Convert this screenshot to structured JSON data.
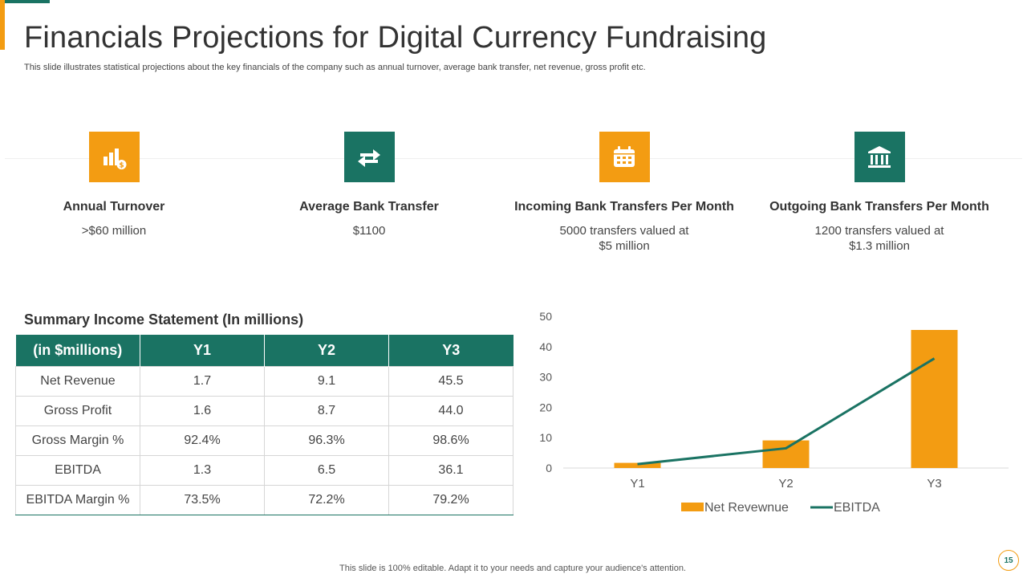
{
  "header": {
    "title": "Financials Projections for Digital Currency Fundraising",
    "subtitle": "This slide illustrates statistical projections about the key financials of the company such as annual turnover, average bank transfer, net revenue, gross profit etc."
  },
  "kpis": [
    {
      "icon": "bar-chart-dollar-icon",
      "color": "#F39C12",
      "label": "Annual Turnover",
      "value_line1": ">$60 million",
      "value_line2": ""
    },
    {
      "icon": "transfer-arrows-icon",
      "color": "#1A7363",
      "label": "Average Bank Transfer",
      "value_line1": "$1100",
      "value_line2": ""
    },
    {
      "icon": "calendar-icon",
      "color": "#F39C12",
      "label": "Incoming Bank Transfers Per Month",
      "value_line1": "5000 transfers valued at",
      "value_line2": "$5 million"
    },
    {
      "icon": "bank-building-icon",
      "color": "#1A7363",
      "label": "Outgoing Bank Transfers Per Month",
      "value_line1": "1200 transfers valued at",
      "value_line2": "$1.3 million"
    }
  ],
  "income_table": {
    "title": "Summary Income Statement (In millions)",
    "headers": [
      "(in $millions)",
      "Y1",
      "Y2",
      "Y3"
    ],
    "rows": [
      [
        "Net Revenue",
        "1.7",
        "9.1",
        "45.5"
      ],
      [
        "Gross Profit",
        "1.6",
        "8.7",
        "44.0"
      ],
      [
        "Gross Margin %",
        "92.4%",
        "96.3%",
        "98.6%"
      ],
      [
        "EBITDA",
        "1.3",
        "6.5",
        "36.1"
      ],
      [
        "EBITDA Margin %",
        "73.5%",
        "72.2%",
        "79.2%"
      ]
    ]
  },
  "chart_data": {
    "type": "bar",
    "categories": [
      "Y1",
      "Y2",
      "Y3"
    ],
    "series": [
      {
        "name": "Net Revewnue",
        "type": "bar",
        "color": "#F39C12",
        "values": [
          1.7,
          9.1,
          45.5
        ]
      },
      {
        "name": "EBITDA",
        "type": "line",
        "color": "#1A7363",
        "values": [
          1.3,
          6.5,
          36.1
        ]
      }
    ],
    "ylim": [
      0,
      50
    ],
    "yticks": [
      0,
      10,
      20,
      30,
      40,
      50
    ],
    "title": "",
    "xlabel": "",
    "ylabel": "",
    "legend_position": "bottom"
  },
  "footer": {
    "note": "This slide is 100% editable. Adapt it to your needs and capture your audience's attention.",
    "page_number": "15"
  }
}
